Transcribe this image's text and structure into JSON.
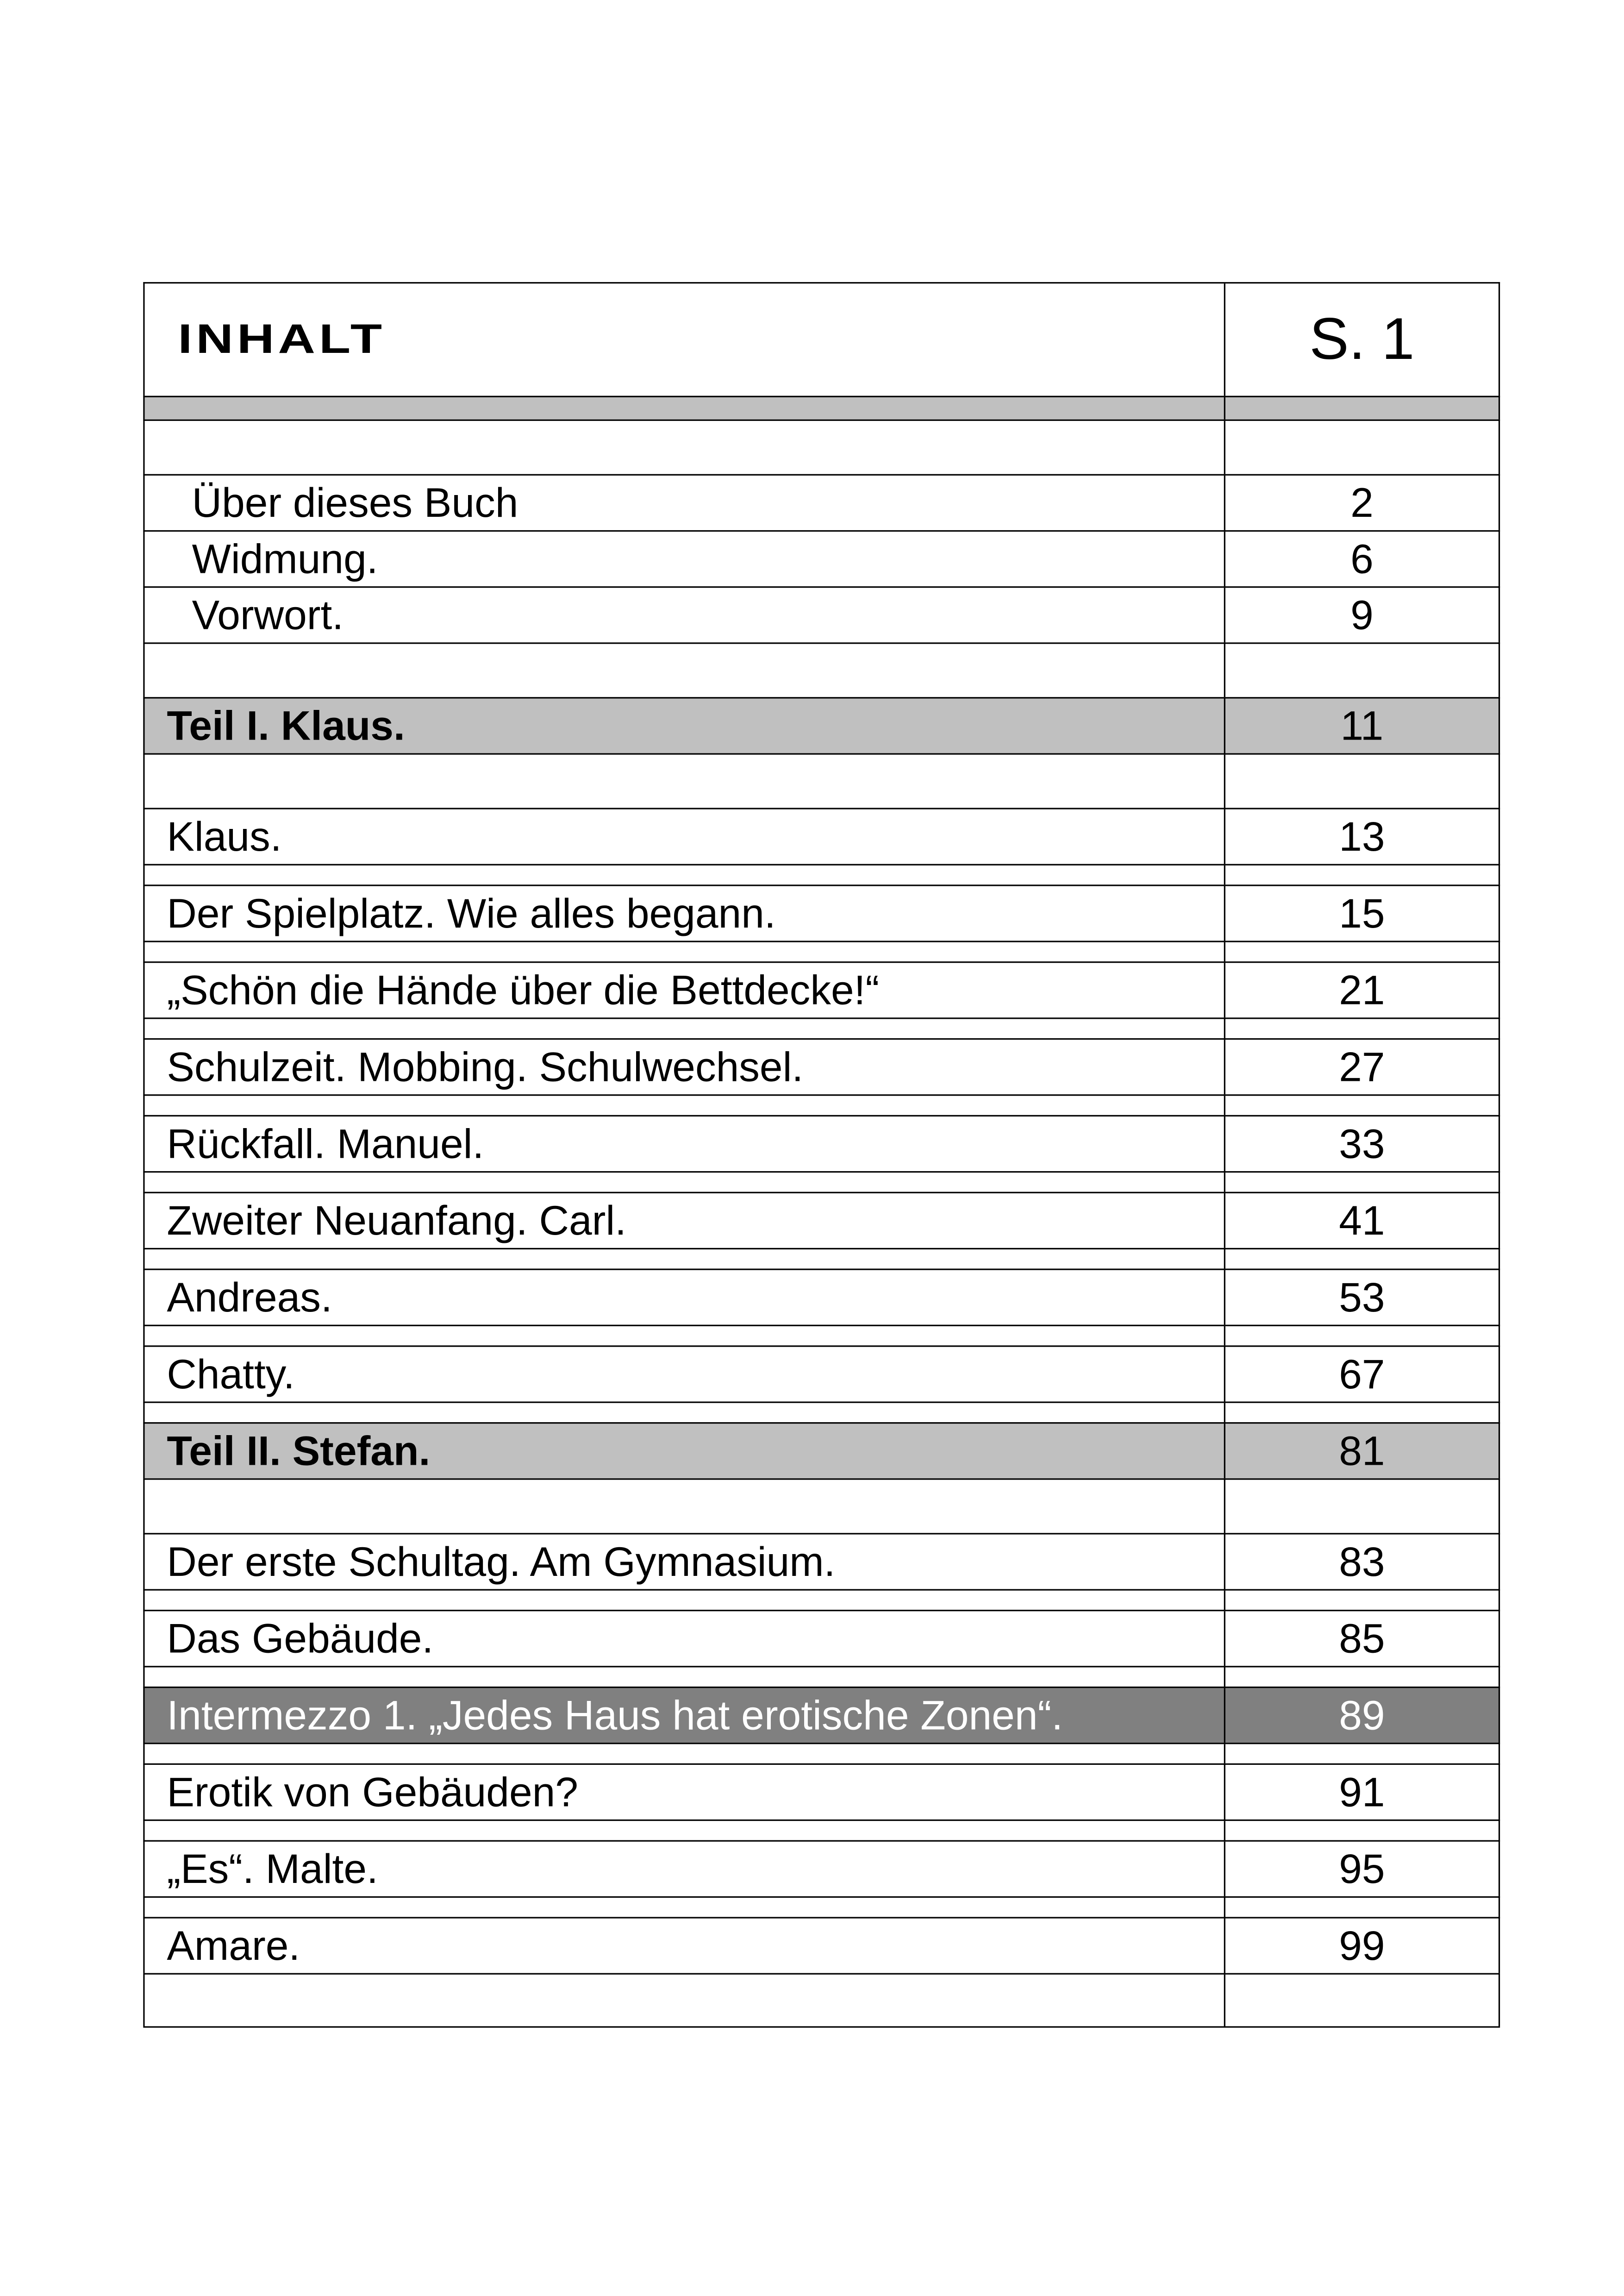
{
  "header": {
    "title": "INHALT",
    "page_label": "S. 1"
  },
  "colors": {
    "part_row": "#c0c0c0",
    "highlight_row": "#808080"
  },
  "rows": [
    {
      "type": "strip"
    },
    {
      "type": "spacer"
    },
    {
      "type": "front",
      "title": "Über dieses Buch",
      "page": "2"
    },
    {
      "type": "front",
      "title": "Widmung.",
      "page": "6"
    },
    {
      "type": "front",
      "title": "Vorwort.",
      "page": "9"
    },
    {
      "type": "spacer"
    },
    {
      "type": "part",
      "title": "Teil I. Klaus.",
      "page": "11"
    },
    {
      "type": "spacer"
    },
    {
      "type": "chapter",
      "title": "Klaus.",
      "page": "13"
    },
    {
      "type": "gap"
    },
    {
      "type": "chapter",
      "title": "Der Spielplatz. Wie alles begann.",
      "page": "15"
    },
    {
      "type": "gap"
    },
    {
      "type": "chapter",
      "title": "„Schön die Hände über die Bettdecke!“",
      "page": "21"
    },
    {
      "type": "gap"
    },
    {
      "type": "chapter",
      "title": "Schulzeit. Mobbing. Schulwechsel.",
      "page": "27"
    },
    {
      "type": "gap"
    },
    {
      "type": "chapter",
      "title": "Rückfall. Manuel.",
      "page": "33"
    },
    {
      "type": "gap"
    },
    {
      "type": "chapter",
      "title": "Zweiter Neuanfang. Carl.",
      "page": "41"
    },
    {
      "type": "gap"
    },
    {
      "type": "chapter",
      "title": "Andreas.",
      "page": "53"
    },
    {
      "type": "gap"
    },
    {
      "type": "chapter",
      "title": "Chatty.",
      "page": "67"
    },
    {
      "type": "gap"
    },
    {
      "type": "part",
      "title": "Teil II. Stefan.",
      "page": "81"
    },
    {
      "type": "spacer"
    },
    {
      "type": "chapter",
      "title": "Der erste Schultag. Am Gymnasium.",
      "page": "83"
    },
    {
      "type": "gap"
    },
    {
      "type": "chapter",
      "title": "Das Gebäude.",
      "page": "85"
    },
    {
      "type": "gap"
    },
    {
      "type": "highlight",
      "title": "Intermezzo 1. „Jedes Haus hat erotische Zonen“.",
      "page": "89"
    },
    {
      "type": "gap"
    },
    {
      "type": "chapter",
      "title": "Erotik von Gebäuden?",
      "page": "91"
    },
    {
      "type": "gap"
    },
    {
      "type": "chapter",
      "title": "„Es“. Malte.",
      "page": "95"
    },
    {
      "type": "gap"
    },
    {
      "type": "chapter",
      "title": "Amare.",
      "page": "99"
    },
    {
      "type": "spacer"
    }
  ]
}
